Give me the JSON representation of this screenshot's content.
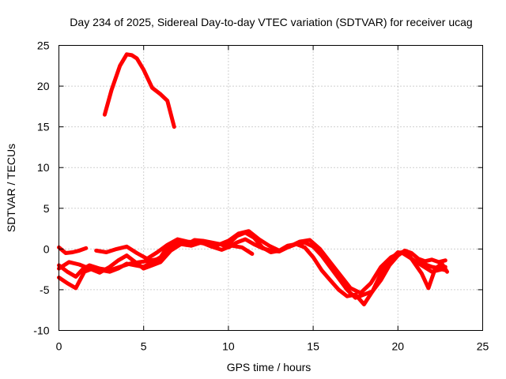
{
  "chart_data": {
    "type": "line",
    "title": "Day 234 of 2025, Sidereal Day-to-day VTEC variation (SDTVAR) for receiver ucag",
    "xlabel": "GPS time / hours",
    "ylabel": "SDTVAR / TECUs",
    "xlim": [
      0,
      25
    ],
    "ylim": [
      -10,
      25
    ],
    "xticks": [
      0,
      5,
      10,
      15,
      20,
      25
    ],
    "yticks": [
      -10,
      -5,
      0,
      5,
      10,
      15,
      20,
      25
    ],
    "grid": true,
    "legend": "none",
    "series_color": "#ff0000",
    "series": [
      {
        "name": "arc-1",
        "x": [
          2.7,
          3.1,
          3.6,
          4.0,
          4.3,
          4.6,
          5.0,
          5.5,
          6.0,
          6.4,
          6.8
        ],
        "y": [
          16.5,
          19.5,
          22.5,
          23.9,
          23.8,
          23.4,
          22.0,
          19.8,
          19.0,
          18.2,
          15.0
        ]
      },
      {
        "name": "arc-2",
        "x": [
          0.0,
          0.4,
          0.8,
          1.2,
          1.6
        ],
        "y": [
          0.2,
          -0.5,
          -0.4,
          -0.2,
          0.1
        ]
      },
      {
        "name": "arc-3",
        "x": [
          0.0,
          0.5,
          1.0,
          1.4,
          1.8,
          2.4,
          3.0,
          3.6,
          4.2,
          4.8,
          5.4,
          6.0,
          6.5,
          7.0,
          7.5,
          8.0,
          8.5,
          9.0,
          9.5,
          10.0,
          10.5,
          11.0,
          11.5,
          12.0,
          12.5,
          13.0,
          13.5,
          14.0,
          14.5,
          15.0,
          15.5,
          16.0,
          16.5,
          17.0,
          17.5,
          18.0,
          18.5,
          19.0,
          19.5,
          20.0,
          20.4,
          20.8,
          21.2,
          21.6,
          22.0,
          22.4,
          22.8
        ],
        "y": [
          -2.0,
          -2.8,
          -3.4,
          -2.5,
          -2.0,
          -2.4,
          -2.6,
          -2.2,
          -1.8,
          -1.6,
          -1.4,
          -1.2,
          0.2,
          0.8,
          0.9,
          0.8,
          0.9,
          0.7,
          0.6,
          0.2,
          0.8,
          1.2,
          0.6,
          0.1,
          -0.2,
          -0.3,
          0.2,
          0.6,
          0.8,
          0.3,
          -0.8,
          -2.2,
          -3.6,
          -5.0,
          -6.0,
          -5.6,
          -5.2,
          -3.8,
          -2.0,
          -0.8,
          -0.2,
          -0.5,
          -1.2,
          -1.5,
          -1.3,
          -1.6,
          -1.4
        ]
      },
      {
        "name": "arc-4",
        "x": [
          0.0,
          0.5,
          1.0,
          1.5,
          2.0,
          2.5,
          3.0,
          3.5,
          4.0,
          4.5,
          5.0,
          5.5,
          6.0,
          6.5,
          7.0,
          7.5,
          8.0,
          8.5,
          9.0,
          9.5,
          10.0,
          10.5,
          11.0,
          11.5,
          12.0,
          12.5,
          13.0,
          13.5,
          14.0,
          14.5,
          15.0,
          15.5,
          16.0,
          16.5,
          17.0,
          17.5,
          18.0,
          18.5,
          19.0,
          19.5,
          20.0,
          20.5,
          21.0,
          21.5,
          22.0,
          22.5,
          22.8
        ],
        "y": [
          -3.5,
          -4.2,
          -4.8,
          -2.8,
          -2.4,
          -2.6,
          -2.8,
          -2.4,
          -1.8,
          -2.0,
          -2.2,
          -1.6,
          -1.0,
          0.6,
          0.9,
          0.5,
          1.1,
          1.0,
          0.8,
          0.6,
          0.6,
          1.6,
          2.0,
          1.4,
          0.2,
          -0.4,
          -0.2,
          0.4,
          0.6,
          0.2,
          -1.0,
          -2.6,
          -3.8,
          -5.0,
          -5.8,
          -5.6,
          -6.8,
          -5.2,
          -3.0,
          -1.4,
          -0.4,
          -0.6,
          -1.6,
          -1.8,
          -2.2,
          -2.4,
          -2.2
        ]
      },
      {
        "name": "arc-5",
        "x": [
          2.2,
          2.8,
          3.4,
          4.0,
          4.6,
          5.2,
          5.8,
          6.4,
          7.0,
          7.6,
          8.2,
          8.8,
          9.4,
          10.0,
          10.6,
          11.2,
          11.8,
          12.4,
          13.0,
          13.6,
          14.2,
          14.8,
          15.4,
          16.0,
          16.6,
          17.2,
          17.8,
          18.4,
          19.0,
          19.6,
          20.2,
          20.8,
          21.4,
          22.0,
          22.6,
          22.8
        ],
        "y": [
          -0.2,
          -0.4,
          0.0,
          0.3,
          -0.5,
          -1.2,
          -0.4,
          0.5,
          1.2,
          0.9,
          0.8,
          0.6,
          0.5,
          1.0,
          1.9,
          2.2,
          1.2,
          0.4,
          -0.2,
          0.3,
          0.9,
          1.1,
          0.0,
          -1.6,
          -3.2,
          -4.8,
          -5.4,
          -4.2,
          -2.2,
          -1.0,
          -0.4,
          -1.2,
          -2.0,
          -2.8,
          -2.5,
          -2.6
        ]
      },
      {
        "name": "arc-6",
        "x": [
          0.0,
          0.6,
          1.2,
          1.8,
          2.4,
          3.0,
          3.5,
          4.0,
          4.5,
          5.0,
          5.5,
          6.0,
          6.6,
          7.2,
          7.8,
          8.4,
          9.0,
          9.6,
          10.2,
          10.8,
          11.4
        ],
        "y": [
          -2.4,
          -1.6,
          -1.9,
          -2.4,
          -2.9,
          -2.2,
          -1.4,
          -0.8,
          -1.6,
          -2.4,
          -2.0,
          -1.6,
          -0.2,
          0.6,
          0.4,
          0.8,
          0.3,
          -0.1,
          0.4,
          0.2,
          -0.6
        ]
      },
      {
        "name": "arc-7",
        "x": [
          20.6,
          21.0,
          21.4,
          21.8,
          22.2,
          22.6,
          22.9
        ],
        "y": [
          -0.6,
          -1.8,
          -3.0,
          -4.8,
          -2.4,
          -1.8,
          -2.8
        ]
      }
    ]
  }
}
